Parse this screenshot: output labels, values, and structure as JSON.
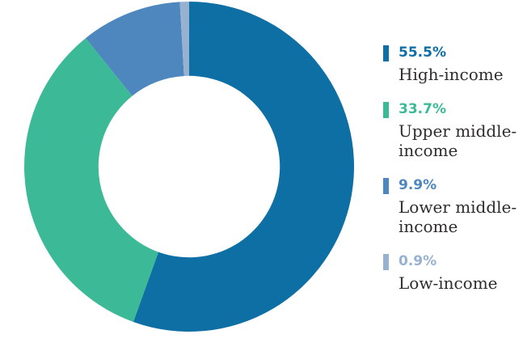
{
  "chart_data": {
    "type": "pie",
    "variant": "donut",
    "title": "",
    "legend_position": "right",
    "start_angle_deg": 0,
    "direction": "clockwise",
    "inner_radius_ratio": 0.55,
    "background_color": "#ffffff",
    "label_text_color": "#2e2d2b",
    "segments": [
      {
        "label": "High-income",
        "percent_label": "55.5%",
        "value": 55.5,
        "color": "#0E6FA5"
      },
      {
        "label": "Upper middle-income",
        "percent_label": "33.7%",
        "value": 33.7,
        "color": "#3CBA97"
      },
      {
        "label": "Lower middle-income",
        "percent_label": "9.9%",
        "value": 9.9,
        "color": "#4D87BE"
      },
      {
        "label": "Low-income",
        "percent_label": "0.9%",
        "value": 0.9,
        "color": "#97B1D0"
      }
    ]
  }
}
